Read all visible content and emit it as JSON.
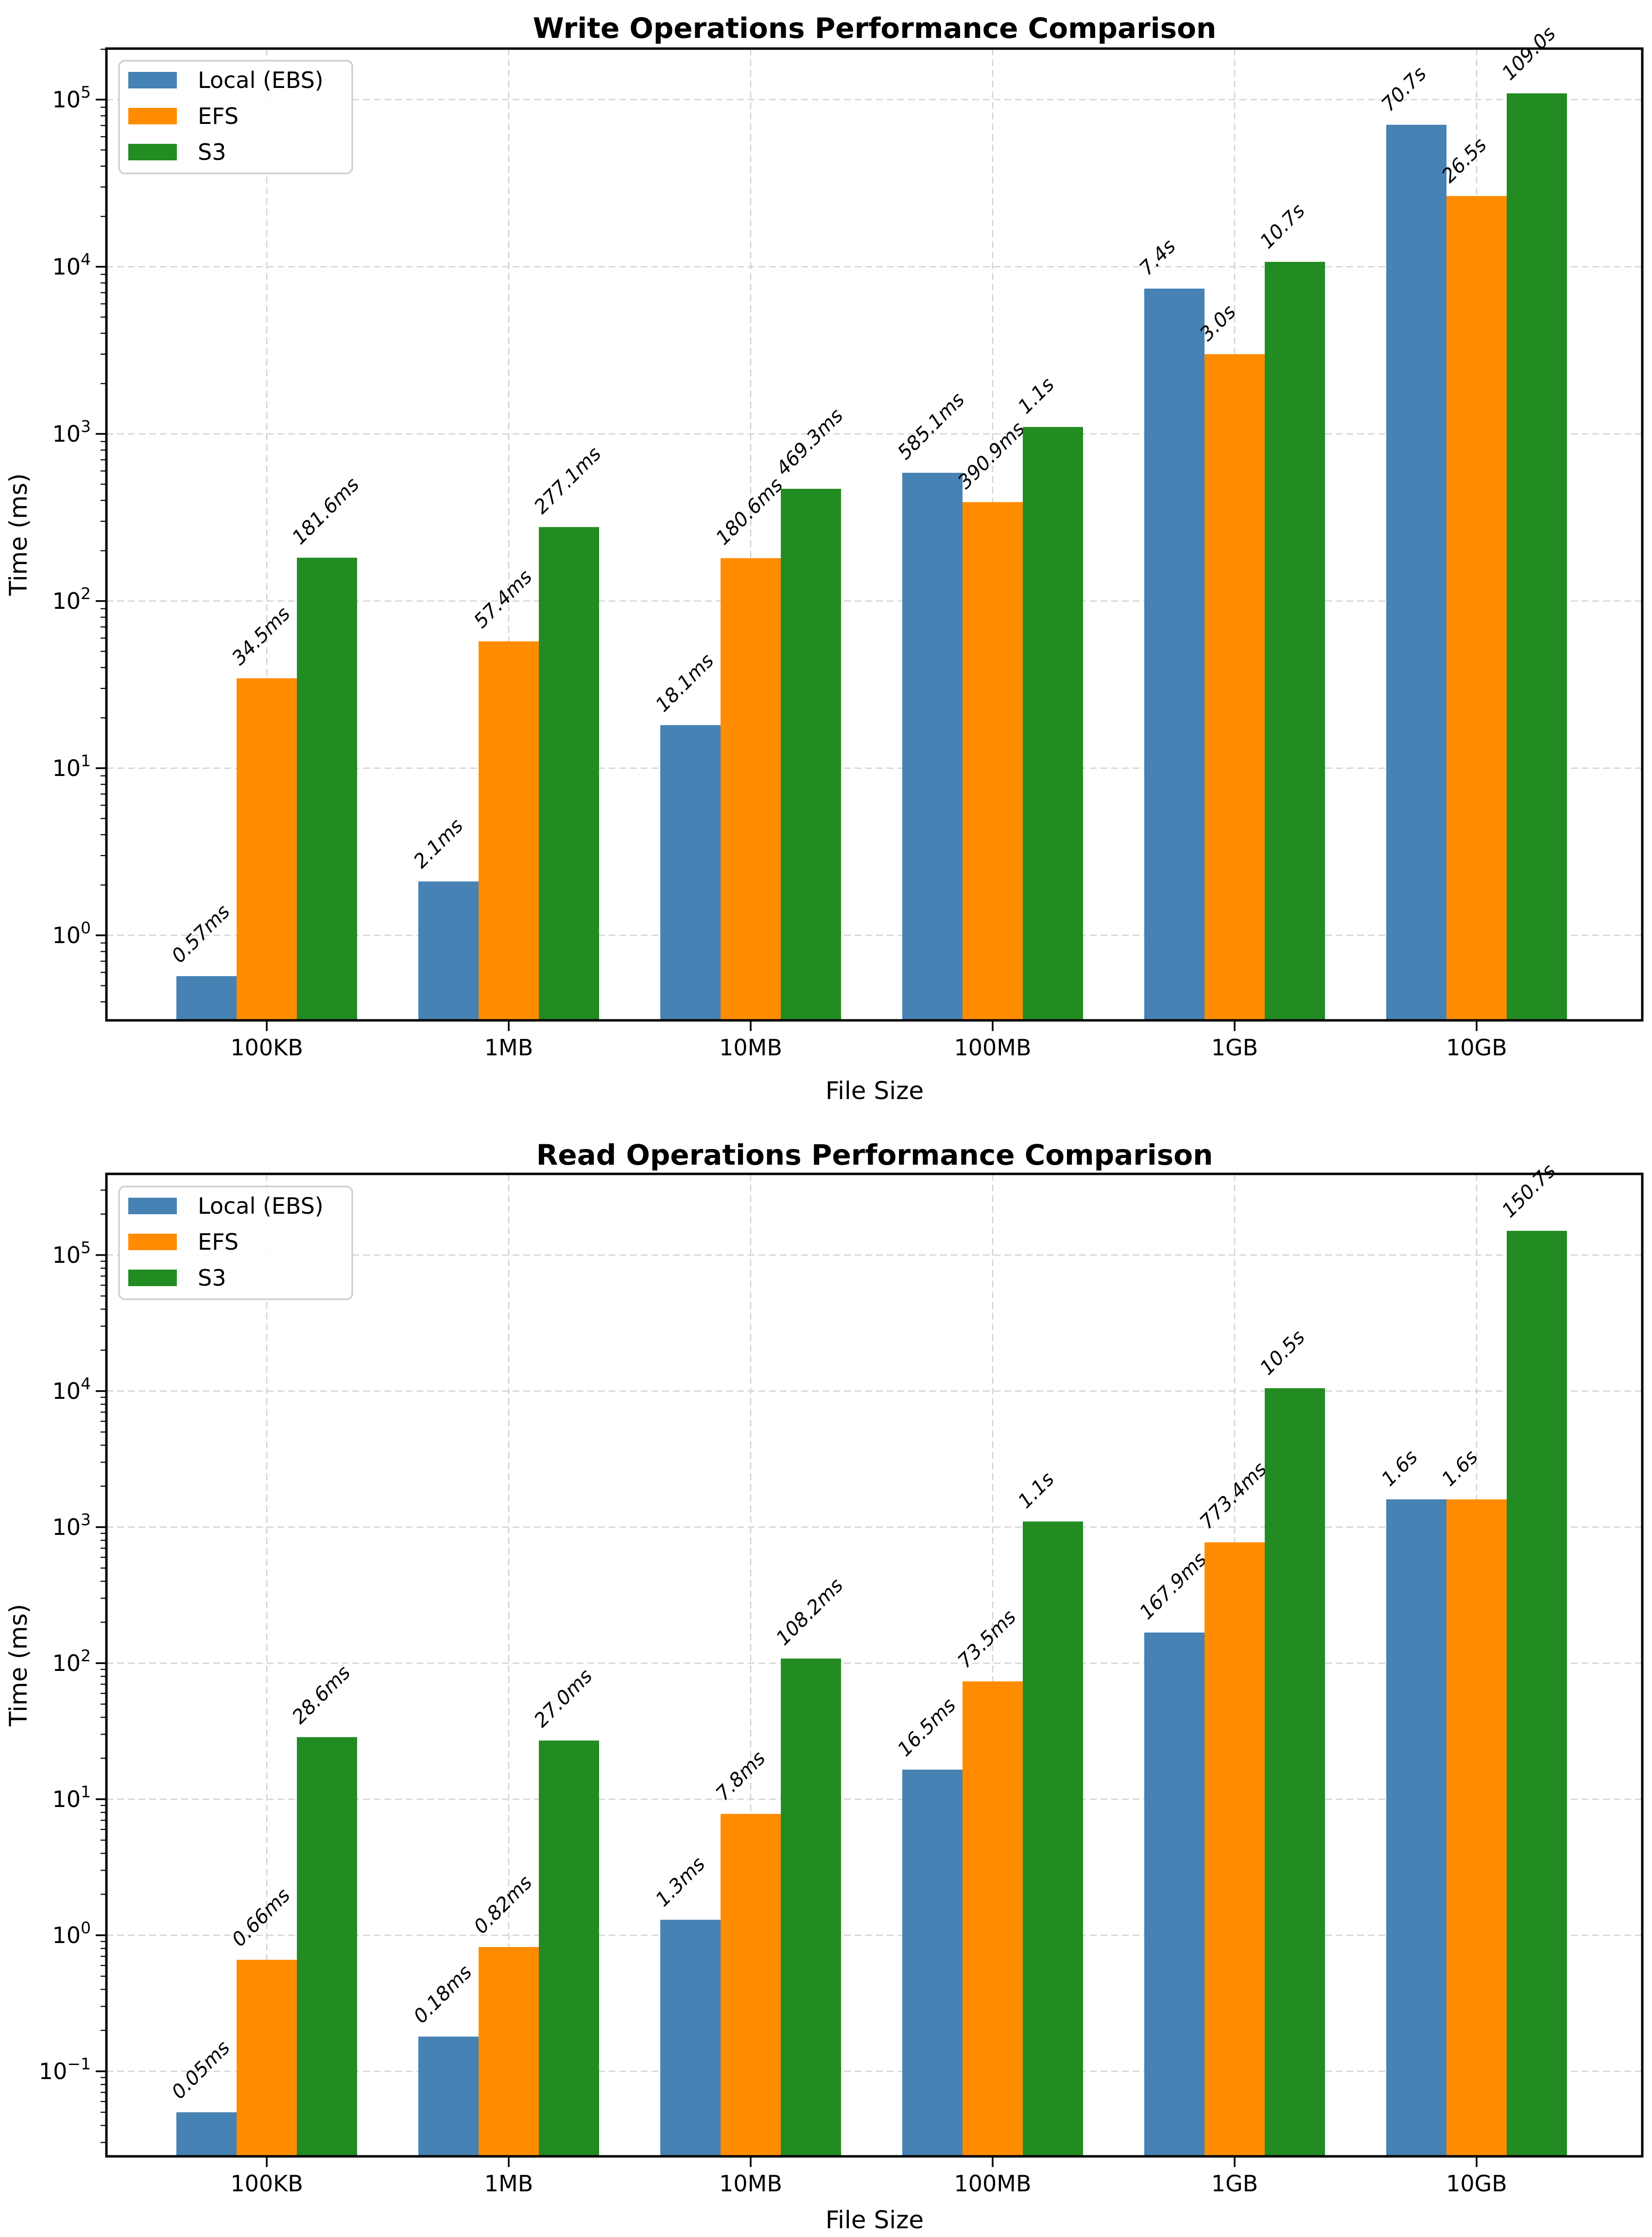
{
  "chart_data": [
    {
      "type": "bar",
      "title": "Write Operations Performance Comparison",
      "xlabel": "File Size",
      "ylabel": "Time (ms)",
      "y_scale": "log",
      "grid": true,
      "legend_position": "upper-left",
      "legend_entries": [
        "Local (EBS)",
        "EFS",
        "S3"
      ],
      "categories": [
        "100KB",
        "1MB",
        "10MB",
        "100MB",
        "1GB",
        "10GB"
      ],
      "y_ticks": [
        "10^0",
        "10^1",
        "10^2",
        "10^3",
        "10^4",
        "10^5"
      ],
      "ylim": [
        0.31,
        200000
      ],
      "series": [
        {
          "name": "Local (EBS)",
          "color": "#4682b4",
          "values": [
            0.57,
            2.1,
            18.1,
            585.1,
            7400,
            70700
          ],
          "labels": [
            "0.57ms",
            "2.1ms",
            "18.1ms",
            "585.1ms",
            "7.4s",
            "70.7s"
          ]
        },
        {
          "name": "EFS",
          "color": "#ff8c00",
          "values": [
            34.5,
            57.4,
            180.6,
            390.9,
            3000,
            26500
          ],
          "labels": [
            "34.5ms",
            "57.4ms",
            "180.6ms",
            "390.9ms",
            "3.0s",
            "26.5s"
          ]
        },
        {
          "name": "S3",
          "color": "#228b22",
          "values": [
            181.6,
            277.1,
            469.3,
            1100,
            10700,
            109000
          ],
          "labels": [
            "181.6ms",
            "277.1ms",
            "469.3ms",
            "1.1s",
            "10.7s",
            "109.0s"
          ]
        }
      ]
    },
    {
      "type": "bar",
      "title": "Read Operations Performance Comparison",
      "xlabel": "File Size",
      "ylabel": "Time (ms)",
      "y_scale": "log",
      "grid": true,
      "legend_position": "upper-left",
      "legend_entries": [
        "Local (EBS)",
        "EFS",
        "S3"
      ],
      "categories": [
        "100KB",
        "1MB",
        "10MB",
        "100MB",
        "1GB",
        "10GB"
      ],
      "y_ticks": [
        "10^-1",
        "10^0",
        "10^1",
        "10^2",
        "10^3",
        "10^4",
        "10^5"
      ],
      "ylim": [
        0.024,
        400000
      ],
      "series": [
        {
          "name": "Local (EBS)",
          "color": "#4682b4",
          "values": [
            0.05,
            0.18,
            1.3,
            16.5,
            167.9,
            1600
          ],
          "labels": [
            "0.05ms",
            "0.18ms",
            "1.3ms",
            "16.5ms",
            "167.9ms",
            "1.6s"
          ]
        },
        {
          "name": "EFS",
          "color": "#ff8c00",
          "values": [
            0.66,
            0.82,
            7.8,
            73.5,
            773.4,
            1600
          ],
          "labels": [
            "0.66ms",
            "0.82ms",
            "7.8ms",
            "73.5ms",
            "773.4ms",
            "1.6s"
          ]
        },
        {
          "name": "S3",
          "color": "#228b22",
          "values": [
            28.6,
            27.0,
            108.2,
            1100,
            10500,
            150700
          ],
          "labels": [
            "28.6ms",
            "27.0ms",
            "108.2ms",
            "1.1s",
            "10.5s",
            "150.7s"
          ]
        }
      ]
    }
  ],
  "style": {
    "grid_color": "#d3d3d3",
    "spine_color": "#000000",
    "legend_border_color": "#d0d0d0",
    "label_color": "#000000"
  }
}
